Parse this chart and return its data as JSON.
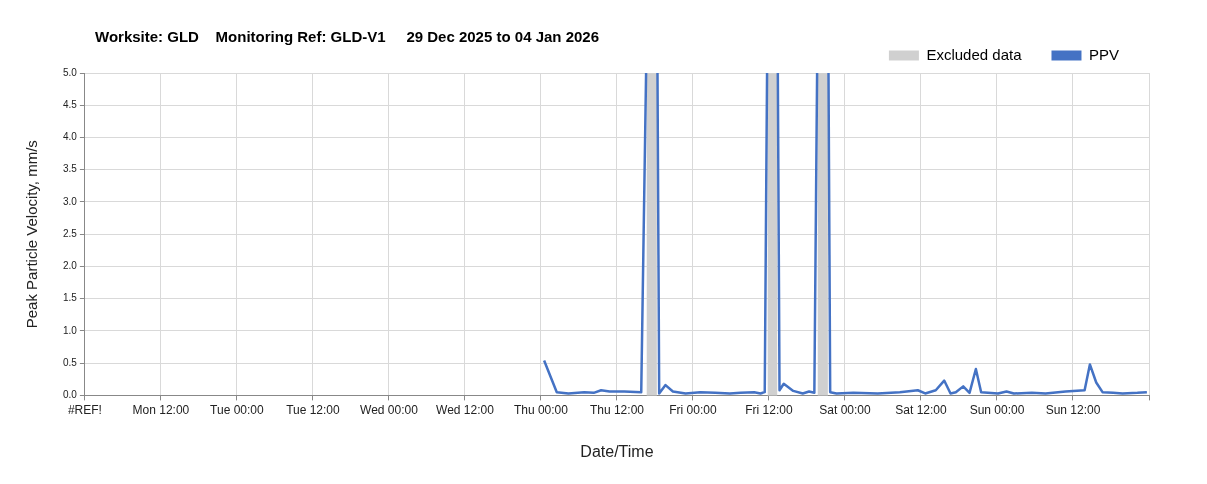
{
  "chart_data": {
    "type": "line",
    "title": "Worksite: GLD    Monitoring Ref: GLD-V1     29 Dec 2025 to 04 Jan 2026",
    "xlabel": "Date/Time",
    "ylabel": "Peak Particle Velocity, mm/s",
    "xlim": [
      "2025-12-29T00:00",
      "2026-01-05T00:00"
    ],
    "xticks": [
      {
        "value": "2025-12-29T00:00",
        "label": "#REF!"
      },
      {
        "value": "2025-12-29T12:00",
        "label": "Mon 12:00"
      },
      {
        "value": "2025-12-30T00:00",
        "label": "Tue 00:00"
      },
      {
        "value": "2025-12-30T12:00",
        "label": "Tue 12:00"
      },
      {
        "value": "2025-12-31T00:00",
        "label": "Wed 00:00"
      },
      {
        "value": "2025-12-31T12:00",
        "label": "Wed 12:00"
      },
      {
        "value": "2026-01-01T00:00",
        "label": "Thu 00:00"
      },
      {
        "value": "2026-01-01T12:00",
        "label": "Thu 12:00"
      },
      {
        "value": "2026-01-02T00:00",
        "label": "Fri 00:00"
      },
      {
        "value": "2026-01-02T12:00",
        "label": "Fri 12:00"
      },
      {
        "value": "2026-01-03T00:00",
        "label": "Sat 00:00"
      },
      {
        "value": "2026-01-03T12:00",
        "label": "Sat 12:00"
      },
      {
        "value": "2026-01-04T00:00",
        "label": "Sun 00:00"
      },
      {
        "value": "2026-01-04T12:00",
        "label": "Sun 12:00"
      },
      {
        "value": "2026-01-05T00:00",
        "label": null
      }
    ],
    "ylim": [
      0,
      5
    ],
    "yticks": [
      {
        "value": 0,
        "label": "0.0"
      },
      0.5,
      {
        "value": 1,
        "label": "1.0"
      },
      1.5,
      {
        "value": 2,
        "label": "2.0"
      },
      2.5,
      {
        "value": 3,
        "label": "3.0"
      },
      3.5,
      {
        "value": 4,
        "label": "4.0"
      },
      4.5,
      {
        "value": 5,
        "label": "5.0"
      }
    ],
    "grid": true,
    "legend": "top right",
    "bands": [
      {
        "axis": "x",
        "from": "2026-01-01T16:42",
        "to": "2026-01-01T18:18",
        "label": "Excluded data",
        "color": "#d0d0d0"
      },
      {
        "axis": "x",
        "from": "2026-01-02T11:48",
        "to": "2026-01-02T13:18",
        "color": "#d0d0d0"
      },
      {
        "axis": "x",
        "from": "2026-01-02T19:42",
        "to": "2026-01-02T21:18",
        "color": "#d0d0d0"
      }
    ],
    "series": [
      {
        "name": "PPV",
        "color": "#4472c4",
        "x": [
          "2026-01-01T00:30",
          "2026-01-01T02:30",
          "2026-01-01T04:20",
          "2026-01-01T06:50",
          "2026-01-01T08:20",
          "2026-01-01T09:30",
          "2026-01-01T10:50",
          "2026-01-01T13:10",
          "2026-01-01T15:50",
          "2026-01-01T16:36",
          "2026-01-01T17:30",
          "2026-01-01T18:24",
          "2026-01-01T18:40",
          "2026-01-01T19:40",
          "2026-01-01T20:50",
          "2026-01-01T22:50",
          "2026-01-02T01:10",
          "2026-01-02T03:30",
          "2026-01-02T05:50",
          "2026-01-02T07:30",
          "2026-01-02T09:40",
          "2026-01-02T10:40",
          "2026-01-02T11:20",
          "2026-01-02T11:42",
          "2026-01-02T12:30",
          "2026-01-02T13:24",
          "2026-01-02T13:40",
          "2026-01-02T14:20",
          "2026-01-02T15:50",
          "2026-01-02T17:20",
          "2026-01-02T18:20",
          "2026-01-02T19:10",
          "2026-01-02T19:36",
          "2026-01-02T20:30",
          "2026-01-02T21:24",
          "2026-01-02T21:40",
          "2026-01-02T22:40",
          "2026-01-03T01:20",
          "2026-01-03T05:10",
          "2026-01-03T08:40",
          "2026-01-03T11:30",
          "2026-01-03T12:40",
          "2026-01-03T14:20",
          "2026-01-03T15:40",
          "2026-01-03T16:40",
          "2026-01-03T17:30",
          "2026-01-03T18:40",
          "2026-01-03T19:40",
          "2026-01-03T20:40",
          "2026-01-03T21:30",
          "2026-01-04T00:10",
          "2026-01-04T01:30",
          "2026-01-04T02:40",
          "2026-01-04T05:30",
          "2026-01-04T07:40",
          "2026-01-04T10:50",
          "2026-01-04T13:50",
          "2026-01-04T14:40",
          "2026-01-04T15:40",
          "2026-01-04T16:40",
          "2026-01-04T18:20",
          "2026-01-04T19:50",
          "2026-01-04T22:10",
          "2026-01-04T23:40"
        ],
        "values": [
          0.54,
          0.05,
          0.03,
          0.05,
          0.04,
          0.08,
          0.06,
          0.06,
          0.05,
          5,
          null,
          5,
          0.03,
          0.16,
          0.06,
          0.03,
          0.05,
          0.04,
          0.03,
          0.04,
          0.05,
          0.03,
          0.05,
          5,
          null,
          5,
          0.08,
          0.18,
          0.07,
          0.03,
          0.06,
          0.04,
          5,
          null,
          5,
          0.05,
          0.03,
          0.04,
          0.03,
          0.05,
          0.08,
          0.03,
          0.08,
          0.23,
          0.03,
          0.05,
          0.14,
          0.04,
          0.41,
          0.05,
          0.03,
          0.06,
          0.03,
          0.04,
          0.03,
          0.06,
          0.08,
          0.48,
          0.2,
          0.05,
          0.04,
          0.03,
          0.04,
          0.05
        ]
      }
    ]
  }
}
